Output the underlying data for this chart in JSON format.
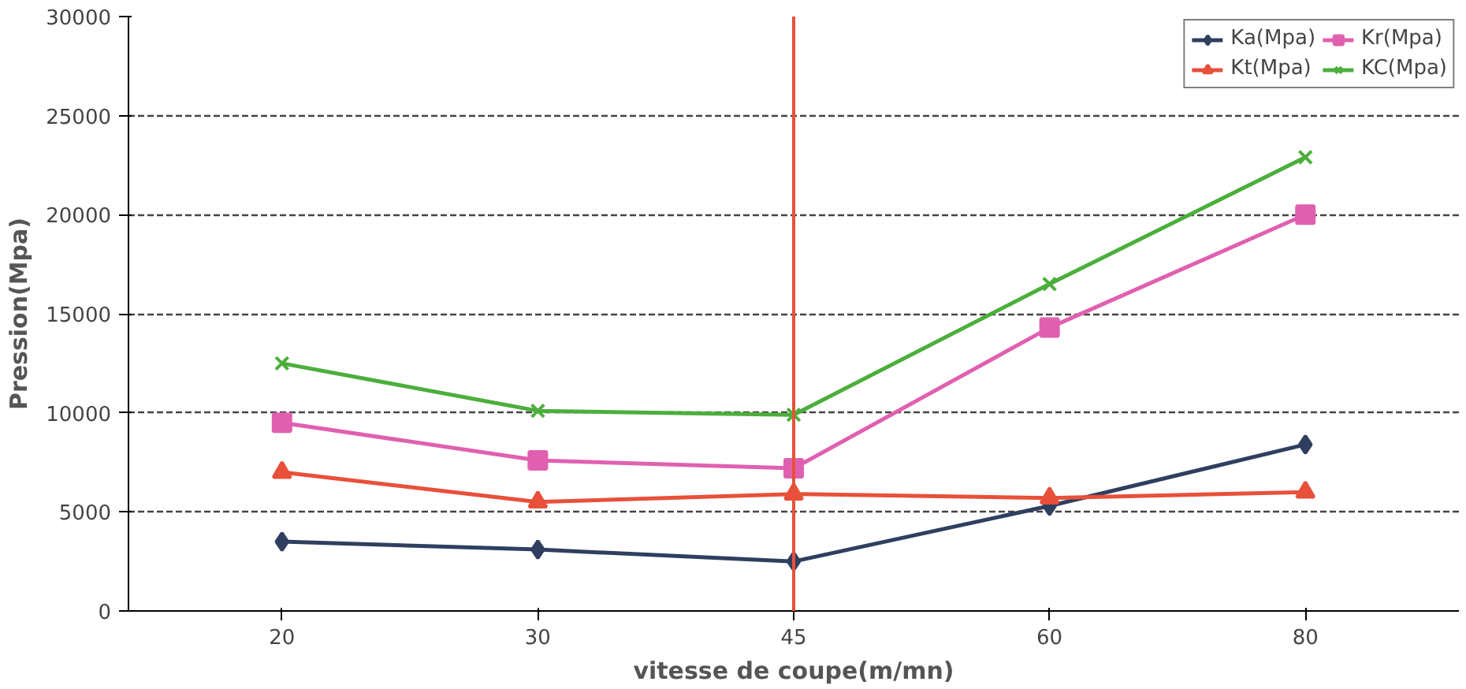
{
  "chart_data": {
    "type": "line",
    "xlabel": "vitesse de coupe(m/mn)",
    "ylabel": "Pression(Mpa)",
    "categories": [
      "20",
      "30",
      "45",
      "60",
      "80"
    ],
    "series": [
      {
        "name": "Ka(Mpa)",
        "color": "#2f3f5f",
        "marker": "diamond",
        "values": [
          3500,
          3100,
          2500,
          5300,
          8400
        ]
      },
      {
        "name": "Kr(Mpa)",
        "color": "#e060b0",
        "marker": "square",
        "values": [
          9500,
          7600,
          7200,
          14300,
          20000
        ]
      },
      {
        "name": "Kt(Mpa)",
        "color": "#e8503a",
        "marker": "triangle",
        "values": [
          7000,
          5500,
          5900,
          5700,
          6000
        ]
      },
      {
        "name": "KC(Mpa)",
        "color": "#4cae3c",
        "marker": "cross",
        "values": [
          12500,
          10100,
          9900,
          16500,
          22900
        ]
      }
    ],
    "ylim": [
      0,
      30000
    ],
    "yticks": [
      0,
      5000,
      10000,
      15000,
      20000,
      25000,
      30000
    ],
    "ref_lines": [
      {
        "axis": "x",
        "value": "45",
        "color": "#e8503a"
      }
    ],
    "grid": "y",
    "legend": "top"
  }
}
